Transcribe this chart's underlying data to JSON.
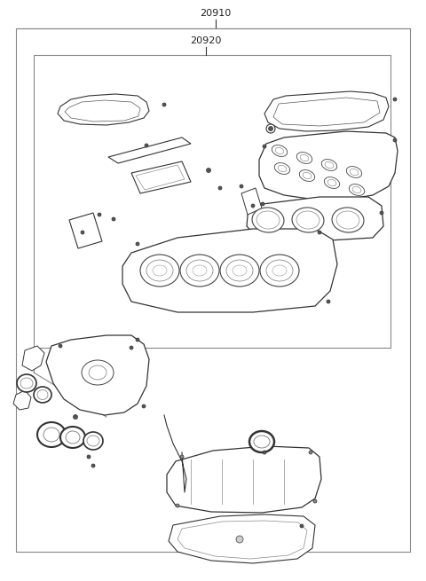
{
  "label_20910": "20910",
  "label_20920": "20920",
  "bg_color": "#ffffff",
  "lc": "#333333",
  "fig_width": 4.8,
  "fig_height": 6.55,
  "dpi": 100
}
